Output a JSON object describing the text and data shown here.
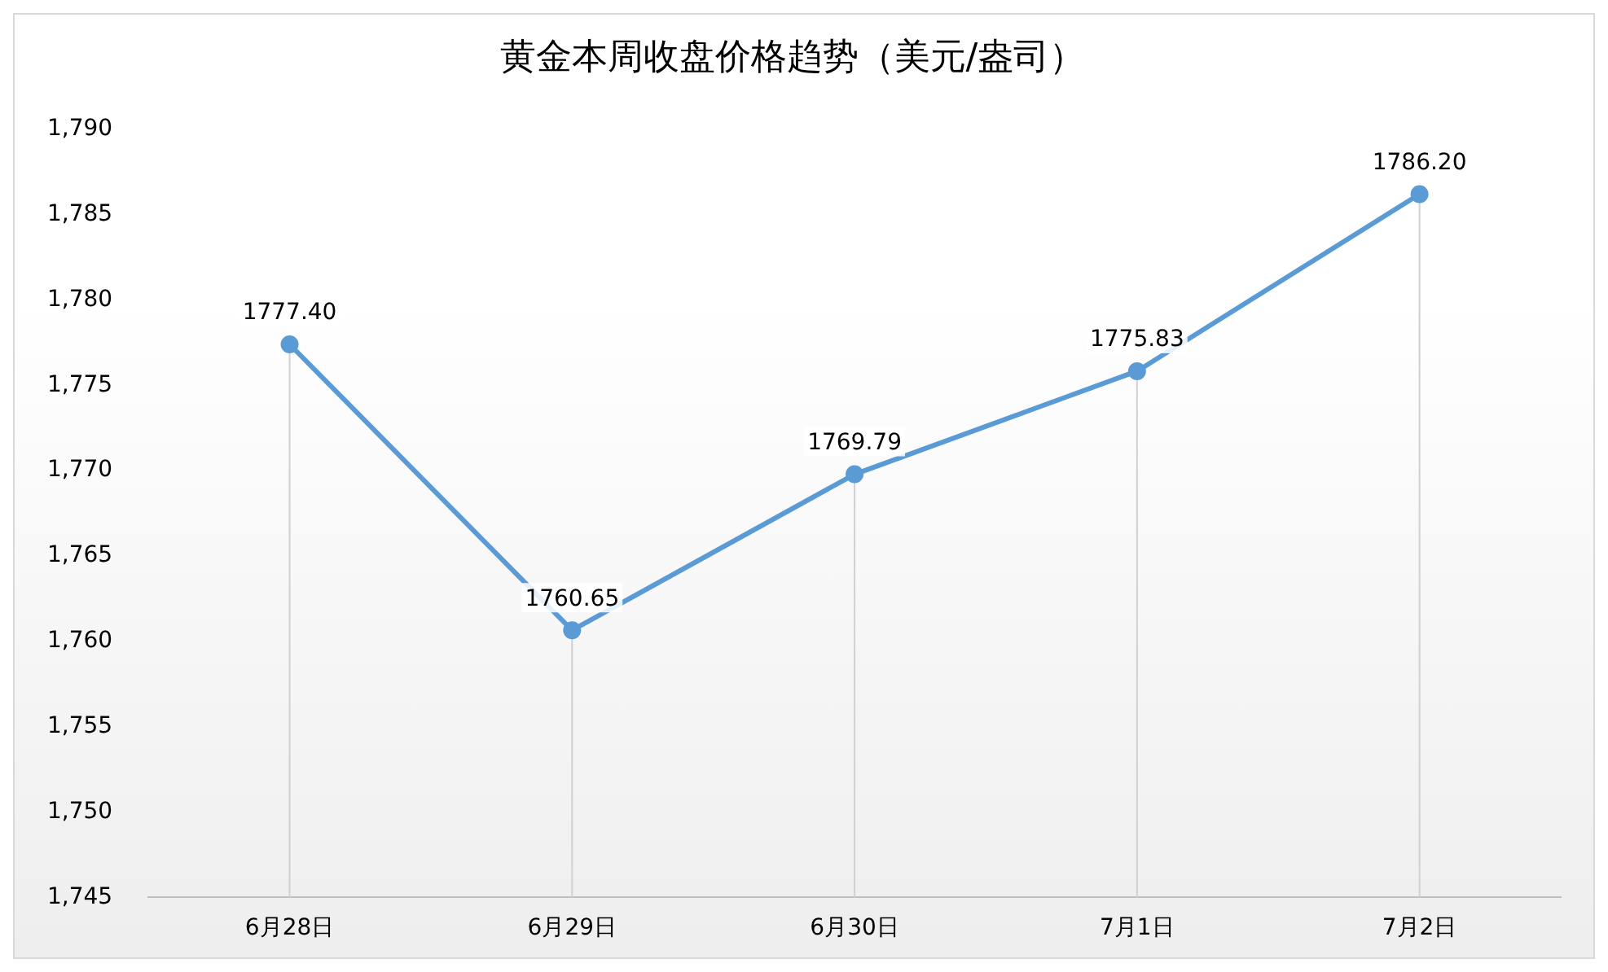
{
  "chart_data": {
    "type": "line",
    "title": "黄金本周收盘价格趋势（美元/盎司）",
    "categories": [
      "6月28日",
      "6月29日",
      "6月30日",
      "7月1日",
      "7月2日"
    ],
    "series": [
      {
        "color": "#5b9bd5",
        "values": [
          1777.4,
          1760.65,
          1769.79,
          1775.83,
          1786.2
        ],
        "value_labels": [
          "1777.40",
          "1760.65",
          "1769.79",
          "1775.83",
          "1786.20"
        ]
      }
    ],
    "ylim": [
      1745,
      1790
    ],
    "yticks": [
      {
        "value": 1745,
        "label": "1,745"
      },
      {
        "value": 1750,
        "label": "1,750"
      },
      {
        "value": 1755,
        "label": "1,755"
      },
      {
        "value": 1760,
        "label": "1,760"
      },
      {
        "value": 1765,
        "label": "1,765"
      },
      {
        "value": 1770,
        "label": "1,770"
      },
      {
        "value": 1775,
        "label": "1,775"
      },
      {
        "value": 1780,
        "label": "1,780"
      },
      {
        "value": 1785,
        "label": "1,785"
      },
      {
        "value": 1790,
        "label": "1,790"
      }
    ],
    "grid": "x",
    "legend": false,
    "marker": "circle",
    "line_style": "solid"
  }
}
